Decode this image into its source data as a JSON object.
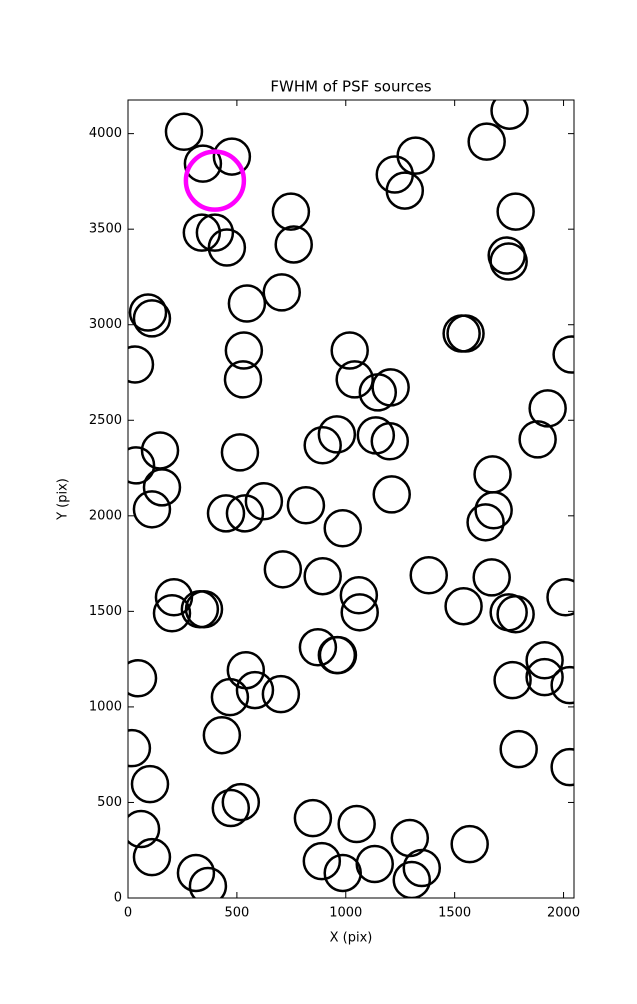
{
  "chart_data": {
    "type": "scatter",
    "title": "FWHM of PSF sources",
    "xlabel": "X (pix)",
    "ylabel": "Y (pix)",
    "xlim": [
      0,
      2048
    ],
    "ylim": [
      0,
      4176
    ],
    "xticks": [
      0,
      500,
      1000,
      1500,
      2000
    ],
    "yticks": [
      0,
      500,
      1000,
      1500,
      2000,
      2500,
      3000,
      3500,
      4000
    ],
    "series": [
      {
        "color": "#000000",
        "x": [
          257,
          344,
          477,
          1752,
          1647,
          1321,
          1225,
          1271,
          1780,
          748,
          761,
          339,
          399,
          454,
          1739,
          1748,
          706,
          546,
          92,
          110,
          1532,
          1550,
          2037,
          32,
          532,
          1018,
          528,
          1041,
          1147,
          1206,
          1927,
          959,
          894,
          1138,
          1202,
          1881,
          147,
          514,
          37,
          1674,
          156,
          1211,
          624,
          817,
          1679,
          1642,
          110,
          450,
          537,
          986,
          711,
          894,
          1381,
          1670,
          211,
          202,
          330,
          349,
          1060,
          1064,
          1541,
          1748,
          1780,
          2009,
          872,
          959,
          964,
          1913,
          541,
          1913,
          2028,
          1766,
          46,
          583,
          702,
          468,
          431,
          18,
          1794,
          2028,
          101,
          472,
          518,
          849,
          1050,
          1294,
          1569,
          60,
          110,
          890,
          986,
          1133,
          1349,
          1303,
          312,
          367
        ],
        "y": [
          4010,
          3843,
          3880,
          4120,
          3958,
          3885,
          3786,
          3702,
          3592,
          3592,
          3420,
          3482,
          3482,
          3404,
          3362,
          3331,
          3169,
          3111,
          3064,
          3033,
          2954,
          2954,
          2844,
          2792,
          2865,
          2865,
          2714,
          2714,
          2646,
          2672,
          2562,
          2426,
          2369,
          2421,
          2390,
          2400,
          2342,
          2332,
          2264,
          2217,
          2149,
          2112,
          2076,
          2055,
          2029,
          1966,
          2034,
          2013,
          2013,
          1935,
          1720,
          1684,
          1689,
          1678,
          1574,
          1490,
          1511,
          1511,
          1584,
          1495,
          1527,
          1495,
          1485,
          1574,
          1312,
          1271,
          1271,
          1244,
          1192,
          1156,
          1114,
          1140,
          1150,
          1088,
          1067,
          1051,
          852,
          784,
          779,
          685,
          596,
          471,
          502,
          418,
          387,
          314,
          282,
          361,
          214,
          193,
          131,
          178,
          157,
          94,
          131,
          63
        ]
      },
      {
        "color": "#ff00ff",
        "x": [
          399
        ],
        "y": [
          3754
        ]
      }
    ]
  }
}
